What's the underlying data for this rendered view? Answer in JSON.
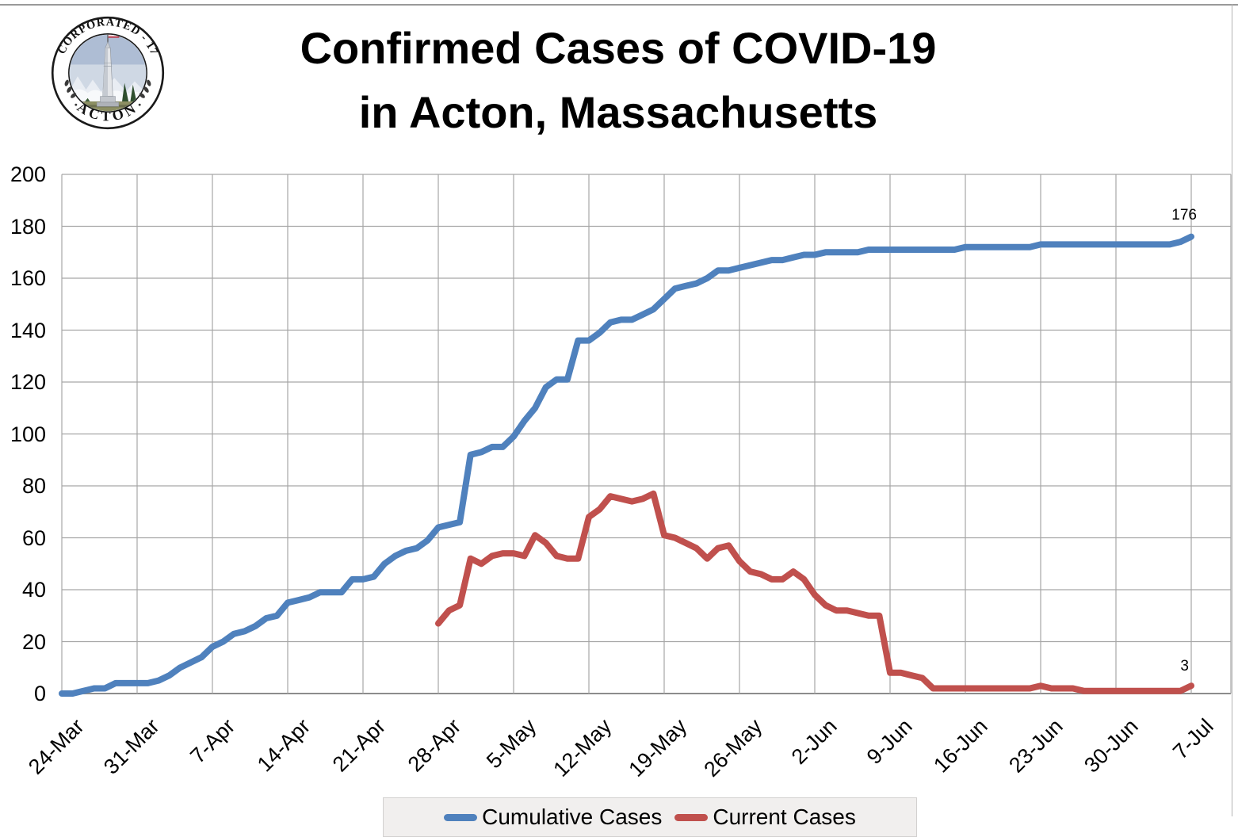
{
  "header": {
    "title_line1": "Confirmed Cases of COVID-19",
    "title_line2": "in Acton, Massachusetts"
  },
  "seal": {
    "ring_top_text": "INCORPORATED - 1735",
    "ring_bottom_text": "ACTON"
  },
  "legend": {
    "items": [
      {
        "label": "Cumulative Cases",
        "color": "#4F81BD"
      },
      {
        "label": "Current Cases",
        "color": "#C0504D"
      }
    ]
  },
  "annotations": {
    "cumulative_end_label": "176",
    "current_end_label": "3"
  },
  "chart_data": {
    "type": "line",
    "title": "Confirmed Cases of COVID-19 in Acton, Massachusetts",
    "xlabel": "",
    "ylabel": "",
    "ylim": [
      0,
      200
    ],
    "y_ticks": [
      0,
      20,
      40,
      60,
      80,
      100,
      120,
      140,
      160,
      180,
      200
    ],
    "grid": true,
    "legend_position": "bottom",
    "x_tick_labels": [
      "24-Mar",
      "31-Mar",
      "7-Apr",
      "14-Apr",
      "21-Apr",
      "28-Apr",
      "5-May",
      "12-May",
      "19-May",
      "26-May",
      "2-Jun",
      "9-Jun",
      "16-Jun",
      "23-Jun",
      "30-Jun",
      "7-Jul"
    ],
    "x_tick_interval_days": 7,
    "total_days": 105,
    "series": [
      {
        "name": "Cumulative Cases",
        "color": "#4F81BD",
        "start_day": 0,
        "end_label": "176",
        "values": [
          0,
          0,
          1,
          2,
          2,
          4,
          4,
          4,
          4,
          5,
          7,
          10,
          12,
          14,
          18,
          20,
          23,
          24,
          26,
          29,
          30,
          35,
          36,
          37,
          39,
          39,
          39,
          44,
          44,
          45,
          50,
          53,
          55,
          56,
          59,
          64,
          65,
          66,
          92,
          93,
          95,
          95,
          99,
          105,
          110,
          118,
          121,
          121,
          136,
          136,
          139,
          143,
          144,
          144,
          146,
          148,
          152,
          156,
          157,
          158,
          160,
          163,
          163,
          164,
          165,
          166,
          167,
          167,
          168,
          169,
          169,
          170,
          170,
          170,
          170,
          171,
          171,
          171,
          171,
          171,
          171,
          171,
          171,
          171,
          172,
          172,
          172,
          172,
          172,
          172,
          172,
          173,
          173,
          173,
          173,
          173,
          173,
          173,
          173,
          173,
          173,
          173,
          173,
          173,
          174,
          176
        ]
      },
      {
        "name": "Current Cases",
        "color": "#C0504D",
        "start_day": 35,
        "end_label": "3",
        "values": [
          27,
          32,
          34,
          52,
          50,
          53,
          54,
          54,
          53,
          61,
          58,
          53,
          52,
          52,
          68,
          71,
          76,
          75,
          74,
          75,
          77,
          61,
          60,
          58,
          56,
          52,
          56,
          57,
          51,
          47,
          46,
          44,
          44,
          47,
          44,
          38,
          34,
          32,
          32,
          31,
          30,
          30,
          8,
          8,
          7,
          6,
          2,
          2,
          2,
          2,
          2,
          2,
          2,
          2,
          2,
          2,
          3,
          2,
          2,
          2,
          1,
          1,
          1,
          1,
          1,
          1,
          1,
          1,
          1,
          1,
          3
        ]
      }
    ]
  }
}
